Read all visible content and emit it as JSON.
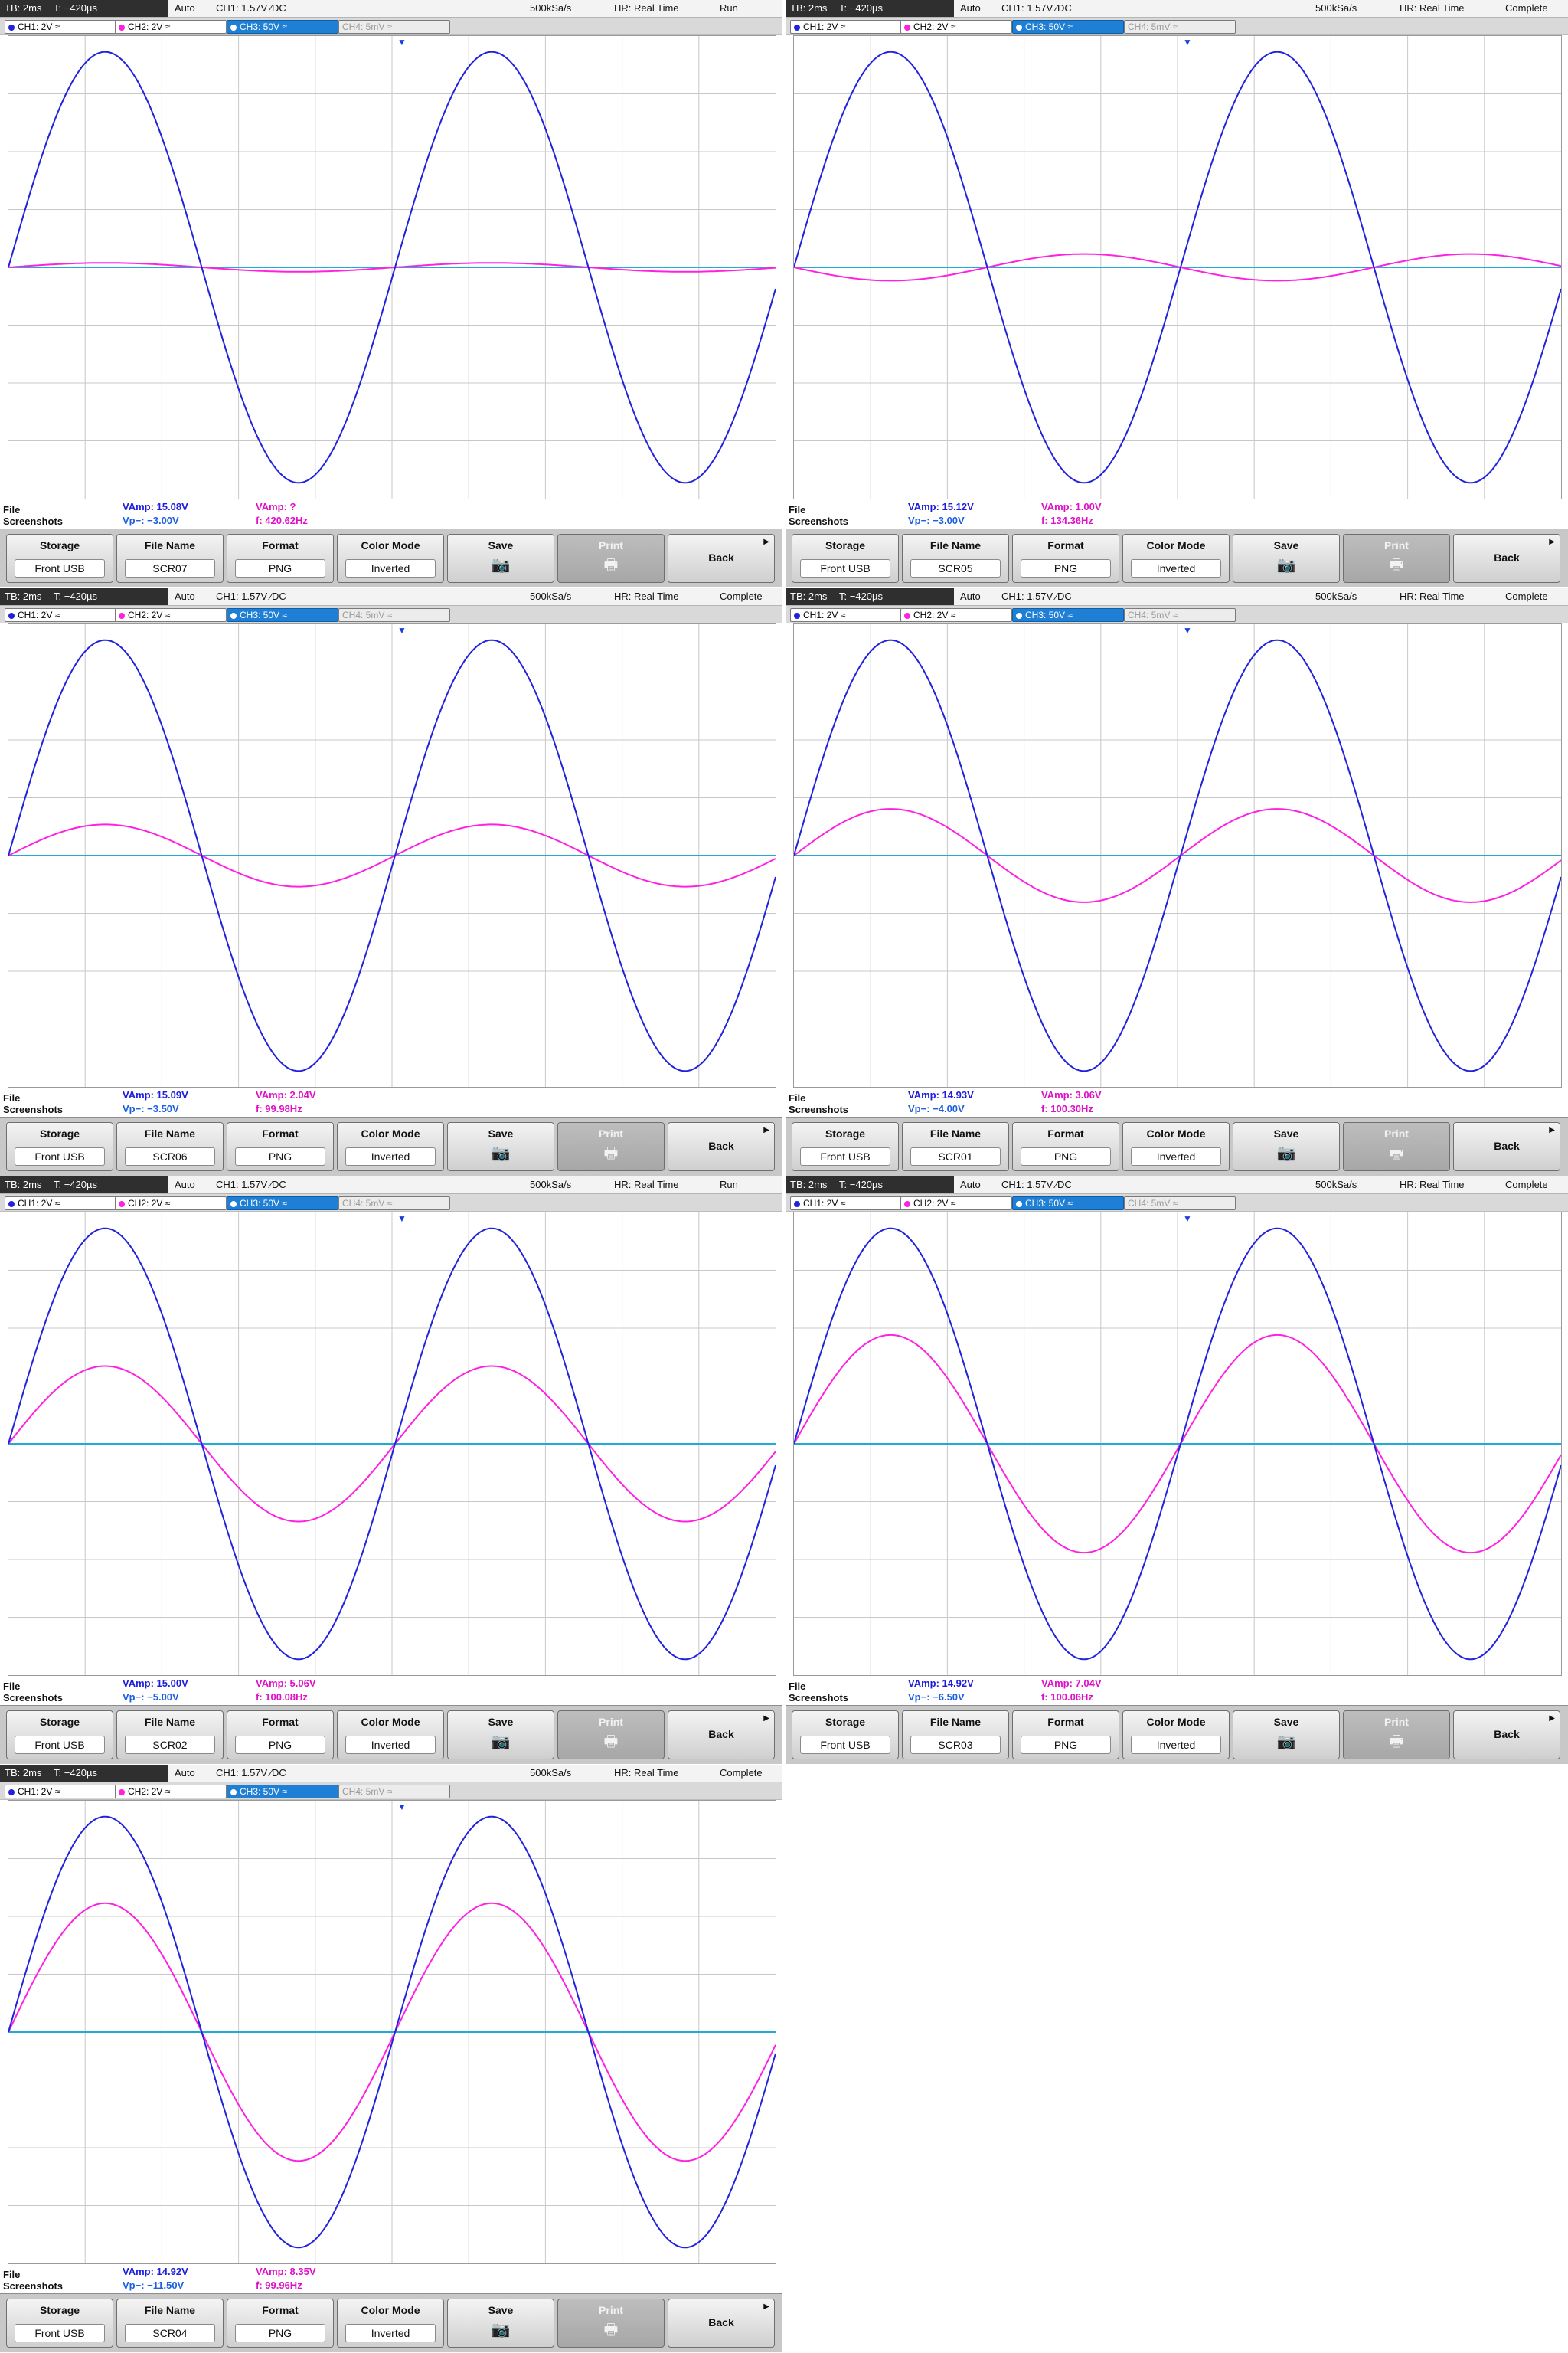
{
  "status": {
    "tb": "TB: 2ms",
    "t": "T: −420µs",
    "auto": "Auto",
    "ch1trig": "CH1: 1.57V ∕DC",
    "rate": "500kSa/s",
    "hr": "HR: Real Time"
  },
  "channels": {
    "ch1": "CH1: 2V",
    "ch2": "CH2: 2V",
    "ch3": "CH3: 50V",
    "ch4": "CH4: 5mV"
  },
  "menu": {
    "file_label": "File",
    "screenshots_label": "Screenshots",
    "storage_label": "Storage",
    "storage_value": "Front USB",
    "filename_label": "File Name",
    "format_label": "Format",
    "format_value": "PNG",
    "colormode_label": "Color Mode",
    "colormode_value": "Inverted",
    "save_label": "Save",
    "print_label": "Print",
    "back_label": "Back"
  },
  "colors": {
    "ch1": "#2222dd",
    "ch2": "#ff20e0",
    "ch3": "#1faad8",
    "grid": "#c8c8c8"
  },
  "panels": [
    {
      "state": "Run",
      "file": "SCR07",
      "ch1_vamp": "VAmp: 15.08V",
      "ch1_vp": "Vp−: −3.00V",
      "ch2_vamp": "VAmp: ?",
      "ch2_f": "f: 420.62Hz",
      "ch2_amp": 0.02,
      "ch2_dir": 1
    },
    {
      "state": "Complete",
      "file": "SCR05",
      "ch1_vamp": "VAmp: 15.12V",
      "ch1_vp": "Vp−: −3.00V",
      "ch2_vamp": "VAmp: 1.00V",
      "ch2_f": "f: 134.36Hz",
      "ch2_amp": 0.06,
      "ch2_dir": -1
    },
    {
      "state": "Complete",
      "file": "SCR06",
      "ch1_vamp": "VAmp: 15.09V",
      "ch1_vp": "Vp−: −3.50V",
      "ch2_vamp": "VAmp: 2.04V",
      "ch2_f": "f: 99.98Hz",
      "ch2_amp": 0.14,
      "ch2_dir": 1
    },
    {
      "state": "Complete",
      "file": "SCR01",
      "ch1_vamp": "VAmp: 14.93V",
      "ch1_vp": "Vp−: −4.00V",
      "ch2_vamp": "VAmp: 3.06V",
      "ch2_f": "f: 100.30Hz",
      "ch2_amp": 0.21,
      "ch2_dir": 1
    },
    {
      "state": "Run",
      "file": "SCR02",
      "ch1_vamp": "VAmp: 15.00V",
      "ch1_vp": "Vp−: −5.00V",
      "ch2_vamp": "VAmp: 5.06V",
      "ch2_f": "f: 100.08Hz",
      "ch2_amp": 0.35,
      "ch2_dir": 1
    },
    {
      "state": "Complete",
      "file": "SCR03",
      "ch1_vamp": "VAmp: 14.92V",
      "ch1_vp": "Vp−: −6.50V",
      "ch2_vamp": "VAmp: 7.04V",
      "ch2_f": "f: 100.06Hz",
      "ch2_amp": 0.49,
      "ch2_dir": 1
    },
    {
      "state": "Complete",
      "file": "SCR04",
      "ch1_vamp": "VAmp: 14.92V",
      "ch1_vp": "Vp−: −11.50V",
      "ch2_vamp": "VAmp: 8.35V",
      "ch2_f": "f: 99.96Hz",
      "ch2_amp": 0.58,
      "ch2_dir": 1
    }
  ]
}
